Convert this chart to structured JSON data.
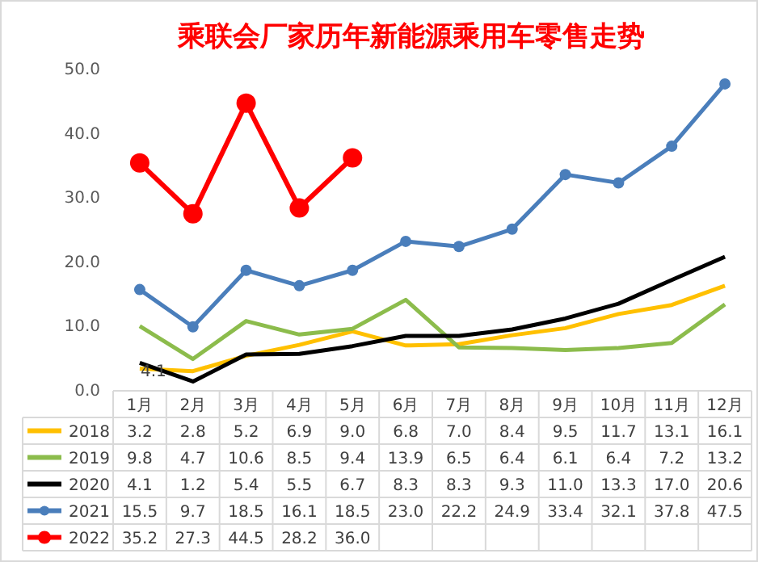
{
  "chart_data": {
    "type": "line",
    "title": "乘联会厂家历年新能源乘用车零售走势",
    "categories": [
      "1月",
      "2月",
      "3月",
      "4月",
      "5月",
      "6月",
      "7月",
      "8月",
      "9月",
      "10月",
      "11月",
      "12月"
    ],
    "ylim": [
      0,
      50
    ],
    "yticks": [
      {
        "value": 0,
        "label": "0.0"
      },
      {
        "value": 10,
        "label": "10.0"
      },
      {
        "value": 20,
        "label": "20.0"
      },
      {
        "value": 30,
        "label": "30.0"
      },
      {
        "value": 40,
        "label": "40.0"
      },
      {
        "value": 50,
        "label": "50.0"
      }
    ],
    "grid": false,
    "legend": "bottom",
    "annotations": [
      "4.1"
    ],
    "series": [
      {
        "name": "2018",
        "color": "#ffc000",
        "marker": "none",
        "values": [
          3.2,
          2.8,
          5.2,
          6.9,
          9.0,
          6.8,
          7.0,
          8.4,
          9.5,
          11.7,
          13.1,
          16.1
        ],
        "value_labels": [
          "3.2",
          "2.8",
          "5.2",
          "6.9",
          "9.0",
          "6.8",
          "7.0",
          "8.4",
          "9.5",
          "11.7",
          "13.1",
          "16.1"
        ]
      },
      {
        "name": "2019",
        "color": "#8cbc4c",
        "marker": "none",
        "values": [
          9.8,
          4.7,
          10.6,
          8.5,
          9.4,
          13.9,
          6.5,
          6.4,
          6.1,
          6.4,
          7.2,
          13.2
        ],
        "value_labels": [
          "9.8",
          "4.7",
          "10.6",
          "8.5",
          "9.4",
          "13.9",
          "6.5",
          "6.4",
          "6.1",
          "6.4",
          "7.2",
          "13.2"
        ]
      },
      {
        "name": "2020",
        "color": "#000000",
        "marker": "none",
        "values": [
          4.1,
          1.2,
          5.4,
          5.5,
          6.7,
          8.3,
          8.3,
          9.3,
          11.0,
          13.3,
          17.0,
          20.6
        ],
        "value_labels": [
          "4.1",
          "1.2",
          "5.4",
          "5.5",
          "6.7",
          "8.3",
          "8.3",
          "9.3",
          "11.0",
          "13.3",
          "17.0",
          "20.6"
        ]
      },
      {
        "name": "2021",
        "color": "#4a7ebb",
        "marker": "circle",
        "values": [
          15.5,
          9.7,
          18.5,
          16.1,
          18.5,
          23.0,
          22.2,
          24.9,
          33.4,
          32.1,
          37.8,
          47.5
        ],
        "value_labels": [
          "15.5",
          "9.7",
          "18.5",
          "16.1",
          "18.5",
          "23.0",
          "22.2",
          "24.9",
          "33.4",
          "32.1",
          "37.8",
          "47.5"
        ]
      },
      {
        "name": "2022",
        "color": "#ff0000",
        "marker": "circle",
        "values": [
          35.2,
          27.3,
          44.5,
          28.2,
          36.0,
          null,
          null,
          null,
          null,
          null,
          null,
          null
        ],
        "value_labels": [
          "35.2",
          "27.3",
          "44.5",
          "28.2",
          "36.0",
          null,
          null,
          null,
          null,
          null,
          null,
          null
        ]
      }
    ]
  }
}
